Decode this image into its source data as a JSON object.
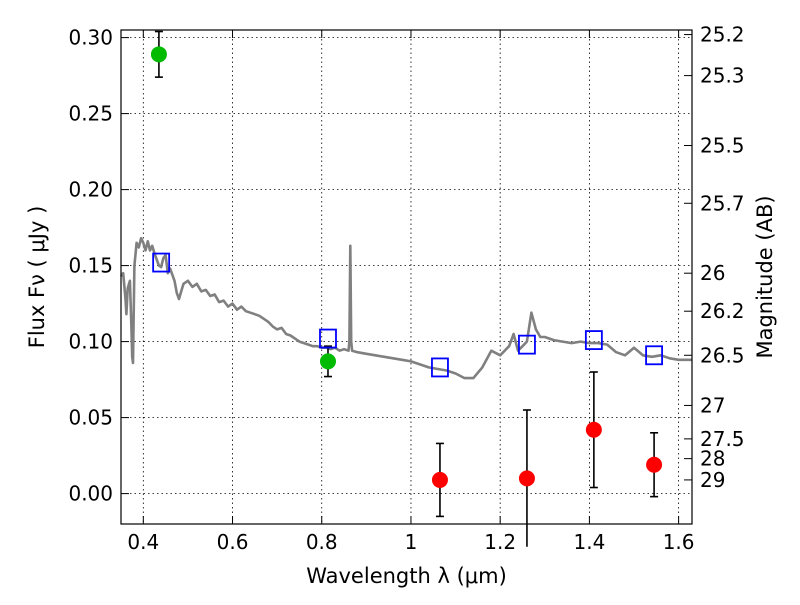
{
  "chart_data": {
    "type": "scatter",
    "xlabel": "Wavelength  λ (μm)",
    "ylabel": "Flux  Fν  ( μJy )",
    "y2label": "Magnitude (AB)",
    "xlim": [
      0.35,
      1.63
    ],
    "ylim": [
      -0.02,
      0.305
    ],
    "grid": true,
    "x_ticks": [
      {
        "value": 0.4,
        "label": "0.4"
      },
      {
        "value": 0.6,
        "label": "0.6"
      },
      {
        "value": 0.8,
        "label": "0.8"
      },
      {
        "value": 1.0,
        "label": "1"
      },
      {
        "value": 1.2,
        "label": "1.2"
      },
      {
        "value": 1.4,
        "label": "1.4"
      },
      {
        "value": 1.6,
        "label": "1.6"
      }
    ],
    "y_ticks": [
      {
        "value": 0.0,
        "label": "0.00"
      },
      {
        "value": 0.05,
        "label": "0.05"
      },
      {
        "value": 0.1,
        "label": "0.10"
      },
      {
        "value": 0.15,
        "label": "0.15"
      },
      {
        "value": 0.2,
        "label": "0.20"
      },
      {
        "value": 0.25,
        "label": "0.25"
      },
      {
        "value": 0.3,
        "label": "0.30"
      }
    ],
    "y2_ticks": [
      {
        "flux": 0.302,
        "label": "25.2"
      },
      {
        "flux": 0.275,
        "label": "25.3"
      },
      {
        "flux": 0.229,
        "label": "25.5"
      },
      {
        "flux": 0.191,
        "label": "25.7"
      },
      {
        "flux": 0.145,
        "label": "26"
      },
      {
        "flux": 0.12,
        "label": "26.2"
      },
      {
        "flux": 0.091,
        "label": "26.5"
      },
      {
        "flux": 0.058,
        "label": "27"
      },
      {
        "flux": 0.036,
        "label": "27.5"
      },
      {
        "flux": 0.023,
        "label": "28"
      },
      {
        "flux": 0.009,
        "label": "29"
      }
    ],
    "colors": {
      "model": "#808080",
      "green": "#00bb00",
      "red": "#ff0000",
      "open_square": "#0000ff",
      "errorbar": "#000000"
    },
    "series": [
      {
        "kind": "model_sed_line",
        "points": [
          [
            0.35,
            0.143
          ],
          [
            0.355,
            0.145
          ],
          [
            0.36,
            0.128
          ],
          [
            0.362,
            0.118
          ],
          [
            0.365,
            0.135
          ],
          [
            0.37,
            0.14
          ],
          [
            0.373,
            0.112
          ],
          [
            0.375,
            0.09
          ],
          [
            0.377,
            0.086
          ],
          [
            0.38,
            0.15
          ],
          [
            0.385,
            0.165
          ],
          [
            0.39,
            0.162
          ],
          [
            0.395,
            0.168
          ],
          [
            0.4,
            0.165
          ],
          [
            0.405,
            0.16
          ],
          [
            0.41,
            0.166
          ],
          [
            0.415,
            0.16
          ],
          [
            0.42,
            0.163
          ],
          [
            0.425,
            0.158
          ],
          [
            0.43,
            0.154
          ],
          [
            0.435,
            0.15
          ],
          [
            0.44,
            0.149
          ],
          [
            0.445,
            0.155
          ],
          [
            0.45,
            0.157
          ],
          [
            0.455,
            0.145
          ],
          [
            0.46,
            0.148
          ],
          [
            0.465,
            0.144
          ],
          [
            0.47,
            0.14
          ],
          [
            0.475,
            0.132
          ],
          [
            0.48,
            0.128
          ],
          [
            0.485,
            0.133
          ],
          [
            0.49,
            0.138
          ],
          [
            0.5,
            0.14
          ],
          [
            0.51,
            0.136
          ],
          [
            0.52,
            0.138
          ],
          [
            0.53,
            0.133
          ],
          [
            0.54,
            0.134
          ],
          [
            0.55,
            0.13
          ],
          [
            0.56,
            0.131
          ],
          [
            0.57,
            0.126
          ],
          [
            0.58,
            0.127
          ],
          [
            0.59,
            0.123
          ],
          [
            0.6,
            0.125
          ],
          [
            0.61,
            0.121
          ],
          [
            0.62,
            0.123
          ],
          [
            0.63,
            0.12
          ],
          [
            0.64,
            0.119
          ],
          [
            0.65,
            0.118
          ],
          [
            0.66,
            0.117
          ],
          [
            0.67,
            0.115
          ],
          [
            0.68,
            0.113
          ],
          [
            0.69,
            0.11
          ],
          [
            0.7,
            0.108
          ],
          [
            0.71,
            0.109
          ],
          [
            0.72,
            0.105
          ],
          [
            0.73,
            0.104
          ],
          [
            0.74,
            0.102
          ],
          [
            0.75,
            0.1
          ],
          [
            0.76,
            0.099
          ],
          [
            0.77,
            0.098
          ],
          [
            0.78,
            0.097
          ],
          [
            0.79,
            0.097
          ],
          [
            0.8,
            0.096
          ],
          [
            0.81,
            0.096
          ],
          [
            0.82,
            0.095
          ],
          [
            0.83,
            0.096
          ],
          [
            0.84,
            0.094
          ],
          [
            0.85,
            0.095
          ],
          [
            0.86,
            0.094
          ],
          [
            0.862,
            0.1
          ],
          [
            0.864,
            0.163
          ],
          [
            0.866,
            0.1
          ],
          [
            0.868,
            0.094
          ],
          [
            0.88,
            0.093
          ],
          [
            0.9,
            0.092
          ],
          [
            0.92,
            0.091
          ],
          [
            0.94,
            0.09
          ],
          [
            0.96,
            0.089
          ],
          [
            0.98,
            0.088
          ],
          [
            1.0,
            0.087
          ],
          [
            1.02,
            0.085
          ],
          [
            1.04,
            0.083
          ],
          [
            1.06,
            0.082
          ],
          [
            1.08,
            0.081
          ],
          [
            1.1,
            0.079
          ],
          [
            1.12,
            0.076
          ],
          [
            1.14,
            0.076
          ],
          [
            1.16,
            0.083
          ],
          [
            1.18,
            0.094
          ],
          [
            1.2,
            0.091
          ],
          [
            1.22,
            0.097
          ],
          [
            1.23,
            0.105
          ],
          [
            1.24,
            0.094
          ],
          [
            1.25,
            0.097
          ],
          [
            1.26,
            0.1
          ],
          [
            1.27,
            0.119
          ],
          [
            1.28,
            0.108
          ],
          [
            1.29,
            0.103
          ],
          [
            1.3,
            0.103
          ],
          [
            1.32,
            0.101
          ],
          [
            1.34,
            0.1
          ],
          [
            1.36,
            0.099
          ],
          [
            1.38,
            0.1
          ],
          [
            1.4,
            0.099
          ],
          [
            1.42,
            0.099
          ],
          [
            1.44,
            0.098
          ],
          [
            1.46,
            0.093
          ],
          [
            1.48,
            0.091
          ],
          [
            1.5,
            0.096
          ],
          [
            1.52,
            0.091
          ],
          [
            1.54,
            0.09
          ],
          [
            1.56,
            0.091
          ],
          [
            1.58,
            0.089
          ],
          [
            1.6,
            0.088
          ],
          [
            1.63,
            0.088
          ]
        ]
      },
      {
        "kind": "observed_detections",
        "marker": "filled-circle",
        "color": "green",
        "points": [
          {
            "x": 0.435,
            "y": 0.289,
            "err_lo": 0.015,
            "err_hi": 0.015
          },
          {
            "x": 0.814,
            "y": 0.087,
            "err_lo": 0.01,
            "err_hi": 0.01
          }
        ]
      },
      {
        "kind": "observed_low_significance",
        "marker": "filled-circle",
        "color": "red",
        "points": [
          {
            "x": 1.065,
            "y": 0.009,
            "err_lo": 0.024,
            "err_hi": 0.024
          },
          {
            "x": 1.26,
            "y": 0.01,
            "err_lo": 0.045,
            "err_hi": 0.045
          },
          {
            "x": 1.41,
            "y": 0.042,
            "err_lo": 0.038,
            "err_hi": 0.038
          },
          {
            "x": 1.545,
            "y": 0.019,
            "err_lo": 0.021,
            "err_hi": 0.021
          }
        ]
      },
      {
        "kind": "model_band_fluxes",
        "marker": "open-square",
        "color": "open_square",
        "points": [
          {
            "x": 0.44,
            "y": 0.152
          },
          {
            "x": 0.814,
            "y": 0.102
          },
          {
            "x": 1.065,
            "y": 0.083
          },
          {
            "x": 1.26,
            "y": 0.098
          },
          {
            "x": 1.41,
            "y": 0.101
          },
          {
            "x": 1.545,
            "y": 0.091
          }
        ]
      }
    ]
  }
}
